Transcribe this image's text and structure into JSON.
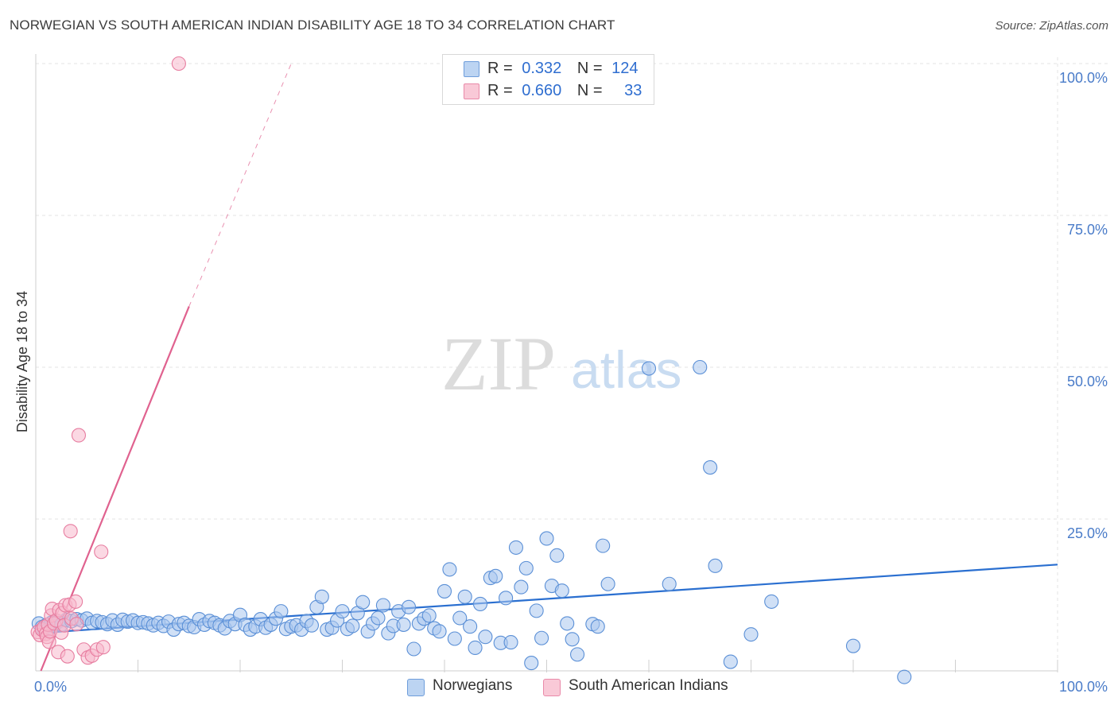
{
  "title": "NORWEGIAN VS SOUTH AMERICAN INDIAN DISABILITY AGE 18 TO 34 CORRELATION CHART",
  "source": "Source: ZipAtlas.com",
  "watermark": {
    "zip": "ZIP",
    "atlas": "atlas"
  },
  "colors": {
    "blue_fill": "#a9c7ee",
    "blue_stroke": "#5a8fd6",
    "blue_line": "#2a6fd0",
    "pink_fill": "#f7b8cc",
    "pink_stroke": "#e77da0",
    "pink_line": "#e0628f",
    "tick_text": "#4a7cc9",
    "grid": "#e3e3e3"
  },
  "legend": {
    "rows": [
      {
        "r_label": "R =",
        "r_value": "0.332",
        "n_label": "N =",
        "n_value": "124"
      },
      {
        "r_label": "R =",
        "r_value": "0.660",
        "n_label": "N =",
        "n_value": "33"
      }
    ]
  },
  "bottom_legend": [
    "Norwegians",
    "South American Indians"
  ],
  "chart_data": {
    "type": "scatter",
    "title": "NORWEGIAN VS SOUTH AMERICAN INDIAN DISABILITY AGE 18 TO 34 CORRELATION CHART",
    "xlabel": "",
    "ylabel": "Disability Age 18 to 34",
    "xlim": [
      0,
      100
    ],
    "ylim": [
      0,
      100
    ],
    "x_tick_labels": [
      "0.0%",
      "100.0%"
    ],
    "y_tick_labels": [
      "100.0%",
      "75.0%",
      "50.0%",
      "25.0%"
    ],
    "y_ticks": [
      100,
      75,
      50,
      25
    ],
    "grid": true,
    "series": [
      {
        "name": "Norwegians",
        "r": 0.332,
        "n": 124,
        "trend": {
          "x0": 0,
          "y0": 6.2,
          "x1": 100,
          "y1": 17.5
        },
        "points": [
          [
            0.3,
            7.8
          ],
          [
            0.6,
            7.2
          ],
          [
            0.8,
            6.9
          ],
          [
            1.0,
            7.5
          ],
          [
            1.2,
            6.8
          ],
          [
            1.5,
            7.9
          ],
          [
            1.8,
            7.4
          ],
          [
            2.2,
            8.1
          ],
          [
            2.5,
            7.6
          ],
          [
            3.0,
            8.4
          ],
          [
            3.5,
            8.2
          ],
          [
            4.0,
            8.5
          ],
          [
            4.5,
            8.3
          ],
          [
            5.0,
            8.6
          ],
          [
            5.5,
            7.9
          ],
          [
            6.0,
            8.2
          ],
          [
            6.5,
            8.0
          ],
          [
            7.0,
            7.7
          ],
          [
            7.5,
            8.3
          ],
          [
            8.0,
            7.6
          ],
          [
            8.5,
            8.4
          ],
          [
            9.0,
            8.1
          ],
          [
            9.5,
            8.3
          ],
          [
            10.0,
            7.9
          ],
          [
            10.5,
            8.0
          ],
          [
            11.0,
            7.8
          ],
          [
            11.5,
            7.5
          ],
          [
            12.0,
            7.9
          ],
          [
            12.5,
            7.4
          ],
          [
            13.0,
            8.1
          ],
          [
            13.5,
            6.8
          ],
          [
            14.0,
            7.7
          ],
          [
            14.5,
            7.9
          ],
          [
            15.0,
            7.4
          ],
          [
            15.5,
            7.2
          ],
          [
            16.0,
            8.5
          ],
          [
            16.5,
            7.6
          ],
          [
            17.0,
            8.2
          ],
          [
            17.5,
            7.9
          ],
          [
            18.0,
            7.5
          ],
          [
            18.5,
            7.0
          ],
          [
            19.0,
            8.2
          ],
          [
            19.5,
            7.7
          ],
          [
            20.0,
            9.2
          ],
          [
            20.5,
            7.6
          ],
          [
            21.0,
            6.8
          ],
          [
            21.5,
            7.3
          ],
          [
            22.0,
            8.5
          ],
          [
            22.5,
            7.1
          ],
          [
            23.0,
            7.6
          ],
          [
            23.5,
            8.6
          ],
          [
            24.0,
            9.8
          ],
          [
            24.5,
            6.9
          ],
          [
            25.0,
            7.3
          ],
          [
            25.5,
            7.5
          ],
          [
            26.0,
            6.8
          ],
          [
            26.5,
            8.2
          ],
          [
            27.0,
            7.5
          ],
          [
            27.5,
            10.5
          ],
          [
            28.0,
            12.2
          ],
          [
            28.5,
            6.8
          ],
          [
            29.0,
            7.1
          ],
          [
            29.5,
            8.3
          ],
          [
            30.0,
            9.8
          ],
          [
            30.5,
            6.9
          ],
          [
            31.0,
            7.4
          ],
          [
            31.5,
            9.5
          ],
          [
            32.0,
            11.3
          ],
          [
            32.5,
            6.5
          ],
          [
            33.0,
            7.8
          ],
          [
            33.5,
            8.7
          ],
          [
            34.0,
            10.8
          ],
          [
            34.5,
            6.2
          ],
          [
            35.0,
            7.4
          ],
          [
            35.5,
            9.8
          ],
          [
            36.0,
            7.6
          ],
          [
            36.5,
            10.5
          ],
          [
            37.0,
            3.6
          ],
          [
            37.5,
            7.8
          ],
          [
            38.0,
            8.6
          ],
          [
            38.5,
            9.1
          ],
          [
            39.0,
            7.0
          ],
          [
            39.5,
            6.5
          ],
          [
            40.0,
            13.1
          ],
          [
            40.5,
            16.7
          ],
          [
            41.0,
            5.3
          ],
          [
            41.5,
            8.7
          ],
          [
            42.0,
            12.2
          ],
          [
            42.5,
            7.3
          ],
          [
            43.0,
            3.8
          ],
          [
            43.5,
            11.0
          ],
          [
            44.0,
            5.6
          ],
          [
            44.5,
            15.3
          ],
          [
            45.0,
            15.6
          ],
          [
            45.5,
            4.6
          ],
          [
            46.0,
            12.0
          ],
          [
            46.5,
            4.7
          ],
          [
            47.0,
            20.3
          ],
          [
            47.5,
            13.8
          ],
          [
            48.0,
            16.9
          ],
          [
            48.5,
            1.3
          ],
          [
            49.0,
            9.9
          ],
          [
            49.5,
            5.4
          ],
          [
            50.0,
            21.8
          ],
          [
            50.5,
            14.0
          ],
          [
            51.0,
            19.0
          ],
          [
            51.5,
            13.2
          ],
          [
            52.0,
            7.8
          ],
          [
            52.5,
            5.2
          ],
          [
            53.0,
            2.7
          ],
          [
            54.5,
            7.7
          ],
          [
            55.0,
            7.3
          ],
          [
            55.5,
            20.6
          ],
          [
            56.0,
            14.3
          ],
          [
            60.0,
            49.8
          ],
          [
            62.0,
            14.3
          ],
          [
            65.0,
            50.0
          ],
          [
            66.0,
            33.5
          ],
          [
            66.5,
            17.3
          ],
          [
            68.0,
            1.5
          ],
          [
            70.0,
            6.0
          ],
          [
            72.0,
            11.4
          ],
          [
            80.0,
            4.1
          ],
          [
            85.0,
            -1.0
          ]
        ]
      },
      {
        "name": "South American Indians",
        "r": 0.66,
        "n": 33,
        "trend": {
          "x0": 0.5,
          "y0": 0,
          "x1": 15,
          "y1": 60
        },
        "trend_dashed": {
          "x0": 15,
          "y0": 60,
          "x1": 25,
          "y1": 100
        },
        "points": [
          [
            0.2,
            6.4
          ],
          [
            0.4,
            5.9
          ],
          [
            0.6,
            6.8
          ],
          [
            0.8,
            7.2
          ],
          [
            1.0,
            6.1
          ],
          [
            1.1,
            5.6
          ],
          [
            1.2,
            7.6
          ],
          [
            1.3,
            4.8
          ],
          [
            1.4,
            6.5
          ],
          [
            1.5,
            9.1
          ],
          [
            1.6,
            10.2
          ],
          [
            1.8,
            7.8
          ],
          [
            2.0,
            8.3
          ],
          [
            2.2,
            3.1
          ],
          [
            2.3,
            10.0
          ],
          [
            2.5,
            6.3
          ],
          [
            2.6,
            9.5
          ],
          [
            2.8,
            7.5
          ],
          [
            2.9,
            10.8
          ],
          [
            3.1,
            2.4
          ],
          [
            3.3,
            10.9
          ],
          [
            3.5,
            8.6
          ],
          [
            3.9,
            11.4
          ],
          [
            4.0,
            7.7
          ],
          [
            4.2,
            38.8
          ],
          [
            4.7,
            3.5
          ],
          [
            5.1,
            2.2
          ],
          [
            5.5,
            2.5
          ],
          [
            6.0,
            3.5
          ],
          [
            6.6,
            3.9
          ],
          [
            3.4,
            23.0
          ],
          [
            6.4,
            19.6
          ],
          [
            14.0,
            100.0
          ]
        ]
      }
    ]
  }
}
